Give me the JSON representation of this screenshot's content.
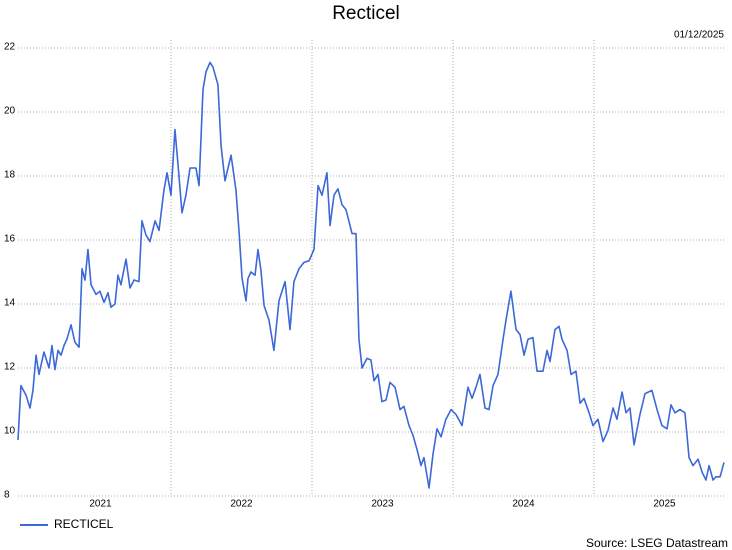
{
  "chart_data": {
    "type": "line",
    "title": "Recticel",
    "date": "01/12/2025",
    "source": "Source: LSEG Datastream",
    "xlim": [
      2020.915,
      2025.929
    ],
    "ylim": [
      8,
      22
    ],
    "xticks": [
      {
        "value": 2021.5,
        "label": "2021"
      },
      {
        "value": 2022.5,
        "label": "2022"
      },
      {
        "value": 2023.5,
        "label": "2023"
      },
      {
        "value": 2024.5,
        "label": "2024"
      },
      {
        "value": 2025.5,
        "label": "2025"
      }
    ],
    "x_gridlines": [
      2022,
      2023,
      2024,
      2025
    ],
    "yticks": [
      8,
      10,
      12,
      14,
      16,
      18,
      20,
      22
    ],
    "grid": true,
    "legend": "bottom-left",
    "x": [
      2020.915,
      2020.936,
      2020.972,
      2021.0,
      2021.021,
      2021.043,
      2021.064,
      2021.099,
      2021.135,
      2021.156,
      2021.177,
      2021.199,
      2021.22,
      2021.241,
      2021.262,
      2021.291,
      2021.319,
      2021.348,
      2021.369,
      2021.39,
      2021.411,
      2021.433,
      2021.468,
      2021.496,
      2021.525,
      2021.553,
      2021.574,
      2021.603,
      2021.624,
      2021.645,
      2021.681,
      2021.709,
      2021.738,
      2021.773,
      2021.794,
      2021.823,
      2021.851,
      2021.887,
      2021.915,
      2021.95,
      2021.972,
      2022.0,
      2022.028,
      2022.05,
      2022.078,
      2022.106,
      2022.135,
      2022.177,
      2022.199,
      2022.227,
      2022.248,
      2022.277,
      2022.298,
      2022.333,
      2022.355,
      2022.383,
      2022.426,
      2022.461,
      2022.482,
      2022.504,
      2022.532,
      2022.546,
      2022.567,
      2022.596,
      2022.617,
      2022.638,
      2022.66,
      2022.695,
      2022.73,
      2022.766,
      2022.809,
      2022.844,
      2022.872,
      2022.908,
      2022.943,
      2022.979,
      2023.014,
      2023.043,
      2023.071,
      2023.106,
      2023.128,
      2023.156,
      2023.184,
      2023.213,
      2023.241,
      2023.284,
      2023.312,
      2023.333,
      2023.355,
      2023.39,
      2023.418,
      2023.44,
      2023.468,
      2023.496,
      2023.525,
      2023.553,
      2023.589,
      2023.624,
      2023.652,
      2023.688,
      2023.716,
      2023.745,
      2023.773,
      2023.794,
      2023.83,
      2023.858,
      2023.887,
      2023.915,
      2023.95,
      2023.986,
      2024.021,
      2024.064,
      2024.106,
      2024.135,
      2024.163,
      2024.191,
      2024.227,
      2024.255,
      2024.284,
      2024.319,
      2024.355,
      2024.376,
      2024.411,
      2024.447,
      2024.475,
      2024.504,
      2024.532,
      2024.567,
      2024.596,
      2024.638,
      2024.667,
      2024.688,
      2024.723,
      2024.752,
      2024.773,
      2024.809,
      2024.837,
      2024.872,
      2024.901,
      2024.929,
      2024.965,
      2024.993,
      2025.028,
      2025.064,
      2025.099,
      2025.135,
      2025.163,
      2025.199,
      2025.227,
      2025.255,
      2025.284,
      2025.326,
      2025.362,
      2025.411,
      2025.447,
      2025.482,
      2025.518,
      2025.546,
      2025.574,
      2025.61,
      2025.645,
      2025.674,
      2025.702,
      2025.738,
      2025.766,
      2025.794,
      2025.816,
      2025.844,
      2025.865,
      2025.894,
      2025.922
    ],
    "series": [
      {
        "name": "RECTICEL",
        "color": "#3c68d8",
        "values": [
          9.75,
          11.45,
          11.15,
          10.75,
          11.3,
          12.4,
          11.8,
          12.5,
          12,
          12.7,
          11.95,
          12.55,
          12.4,
          12.7,
          12.9,
          13.35,
          12.8,
          12.65,
          15.1,
          14.75,
          15.7,
          14.6,
          14.3,
          14.4,
          14.05,
          14.35,
          13.9,
          14,
          14.9,
          14.6,
          15.4,
          14.5,
          14.75,
          14.7,
          16.6,
          16.15,
          15.95,
          16.6,
          16.3,
          17.55,
          18.1,
          17.4,
          19.45,
          18.35,
          16.85,
          17.4,
          18.25,
          18.25,
          17.7,
          20.7,
          21.25,
          21.55,
          21.4,
          20.85,
          18.95,
          17.85,
          18.65,
          17.55,
          16.3,
          14.8,
          14.1,
          14.8,
          15,
          14.9,
          15.7,
          15.05,
          13.95,
          13.5,
          12.55,
          14.1,
          14.7,
          13.2,
          14.7,
          15.1,
          15.3,
          15.35,
          15.7,
          17.7,
          17.4,
          18.1,
          16.45,
          17.4,
          17.6,
          17.1,
          16.95,
          16.2,
          16.2,
          12.9,
          12,
          12.3,
          12.25,
          11.6,
          11.8,
          10.95,
          11,
          11.55,
          11.4,
          10.7,
          10.8,
          10.2,
          9.9,
          9.45,
          8.95,
          9.2,
          8.25,
          9.3,
          10.1,
          9.85,
          10.4,
          10.7,
          10.55,
          10.2,
          11.4,
          11.05,
          11.4,
          11.8,
          10.75,
          10.7,
          11.45,
          11.8,
          12.9,
          13.5,
          14.4,
          13.2,
          13.05,
          12.4,
          12.9,
          12.95,
          11.9,
          11.9,
          12.55,
          12.2,
          13.2,
          13.3,
          12.9,
          12.55,
          11.8,
          11.9,
          10.9,
          11.05,
          10.6,
          10.2,
          10.4,
          9.7,
          10.05,
          10.75,
          10.4,
          11.25,
          10.6,
          10.75,
          9.6,
          10.55,
          11.2,
          11.3,
          10.7,
          10.2,
          10.1,
          10.85,
          10.6,
          10.7,
          10.6,
          9.2,
          8.95,
          9.15,
          8.75,
          8.5,
          8.95,
          8.5,
          8.6,
          8.6,
          9.05
        ]
      }
    ]
  }
}
